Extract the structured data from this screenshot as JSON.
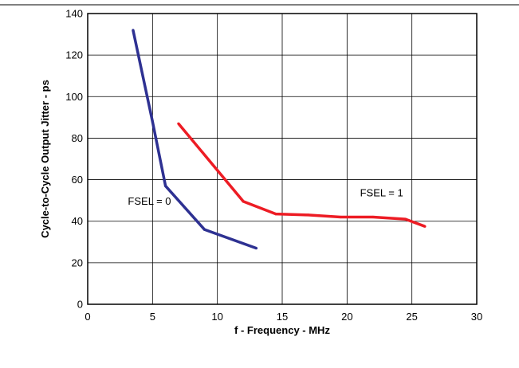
{
  "chart_data": {
    "type": "line",
    "title": "",
    "xlabel": "f - Frequency - MHz",
    "ylabel": "Cycle-to-Cycle Output Jitter - ps",
    "xlim": [
      0,
      30
    ],
    "ylim": [
      0,
      140
    ],
    "xticks": [
      0,
      5,
      10,
      15,
      20,
      25,
      30
    ],
    "yticks": [
      0,
      20,
      40,
      60,
      80,
      100,
      120,
      140
    ],
    "grid": true,
    "legend": "none",
    "series": [
      {
        "color": "#2e3192",
        "x": [
          3.5,
          5.0,
          6.0,
          9.0,
          13.0
        ],
        "y": [
          132,
          88,
          57,
          36,
          27
        ]
      },
      {
        "color": "#ed1c24",
        "x": [
          7.0,
          12.0,
          14.5,
          17.0,
          19.5,
          22.0,
          24.5,
          26.0
        ],
        "y": [
          87,
          49.5,
          43.5,
          43,
          42,
          42,
          41,
          37.5
        ]
      }
    ],
    "annotations": [
      {
        "text": "FSEL = 0",
        "x": 3.1,
        "y": 48
      },
      {
        "text": "FSEL = 1",
        "x": 21.0,
        "y": 52
      }
    ]
  }
}
